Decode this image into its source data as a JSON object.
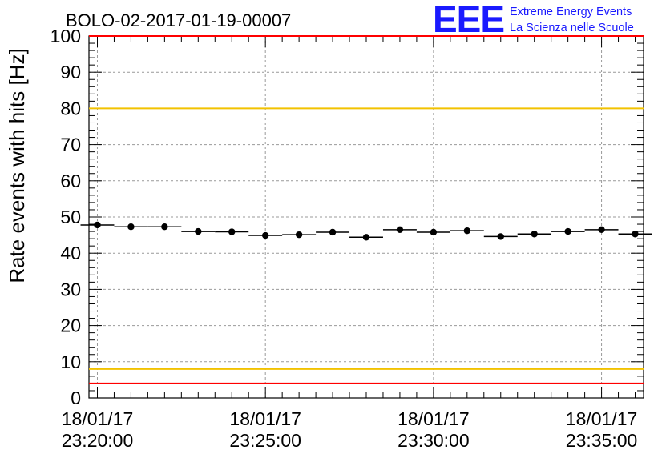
{
  "chart_data": {
    "type": "scatter",
    "title": "BOLO-02-2017-01-19-00007",
    "ylabel": "Rate events with hits [Hz]",
    "xlabel": "",
    "ylim": [
      0,
      100
    ],
    "yticks": [
      0,
      10,
      20,
      30,
      40,
      50,
      60,
      70,
      80,
      90,
      100
    ],
    "x_start": "2017-01-18T23:19:45",
    "x_end": "2017-01-18T23:36:15",
    "x_tick_labels": [
      {
        "date": "18/01/17",
        "time": "23:20:00"
      },
      {
        "date": "18/01/17",
        "time": "23:25:00"
      },
      {
        "date": "18/01/17",
        "time": "23:30:00"
      },
      {
        "date": "18/01/17",
        "time": "23:35:00"
      }
    ],
    "grid": true,
    "bin_width_seconds": 60,
    "series": [
      {
        "x": [
          "23:20:00",
          "23:21:00",
          "23:22:00",
          "23:23:00",
          "23:24:00",
          "23:25:00",
          "23:26:00",
          "23:27:00",
          "23:28:00",
          "23:29:00",
          "23:30:00",
          "23:31:00",
          "23:32:00",
          "23:33:00",
          "23:34:00",
          "23:35:00",
          "23:36:00"
        ],
        "values": [
          47.8,
          47.3,
          47.3,
          46.0,
          45.9,
          44.9,
          45.1,
          45.8,
          44.4,
          46.5,
          45.8,
          46.2,
          44.6,
          45.3,
          46.0,
          46.5,
          45.3
        ]
      }
    ],
    "reference_lines": [
      {
        "y": 80,
        "color": "#f2c200"
      },
      {
        "y": 8,
        "color": "#f2c200"
      },
      {
        "y": 4,
        "color": "#ff0000"
      },
      {
        "y": 100,
        "color": "#ff0000"
      }
    ]
  },
  "logo": {
    "text": "EEE",
    "line1": "Extreme Energy Events",
    "line2": "La Scienza nelle Scuole",
    "color": "#1a1aff"
  }
}
